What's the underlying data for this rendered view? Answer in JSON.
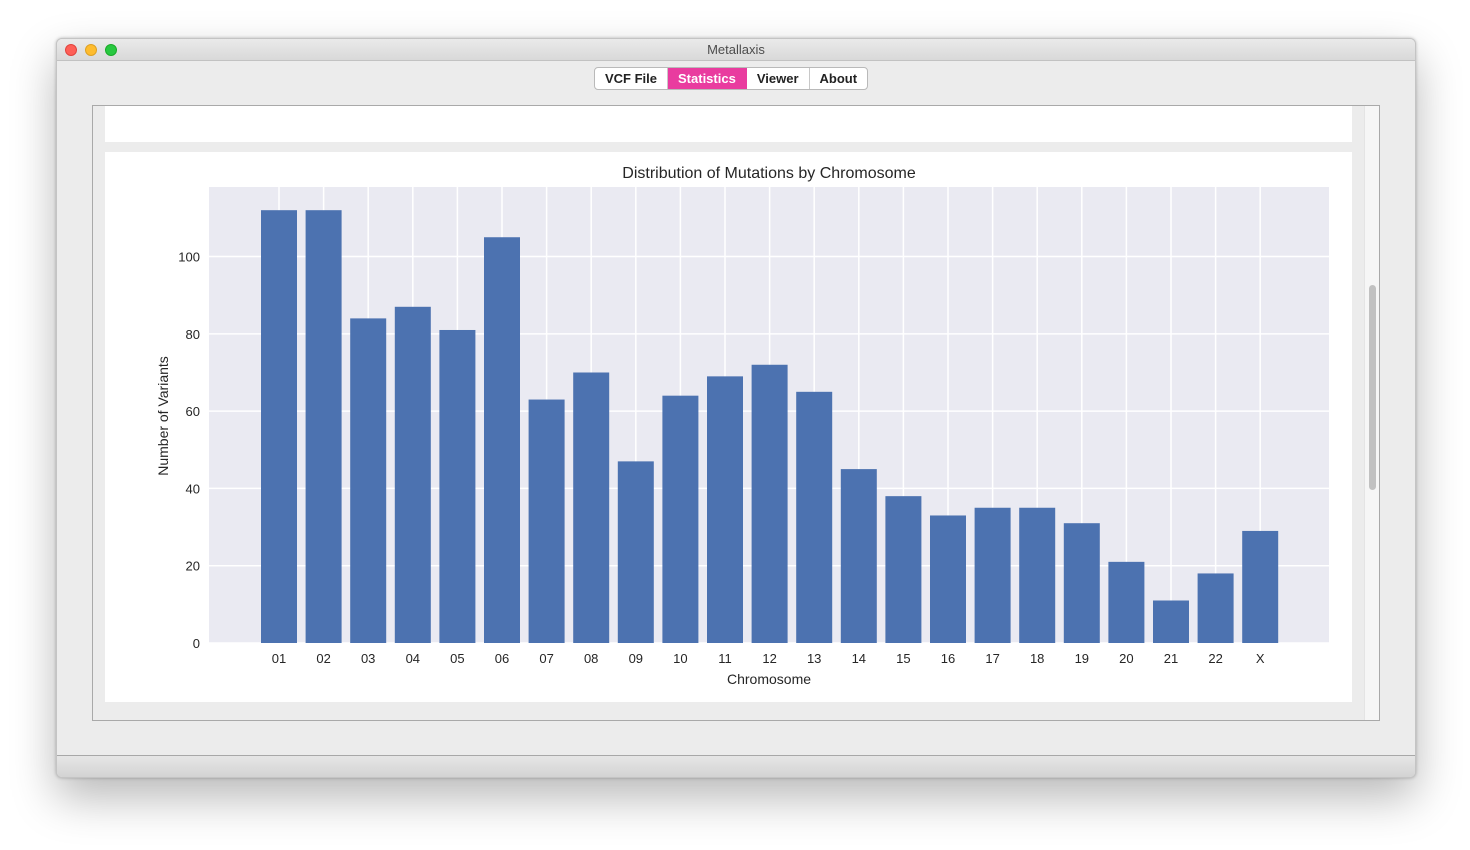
{
  "window": {
    "title": "Metallaxis"
  },
  "tabs": [
    {
      "label": "VCF File",
      "active": false
    },
    {
      "label": "Statistics",
      "active": true
    },
    {
      "label": "Viewer",
      "active": false
    },
    {
      "label": "About",
      "active": false
    }
  ],
  "colors": {
    "bar": "#4c72b0",
    "plot_bg": "#eaeaf2",
    "grid": "#ffffff",
    "active_tab": "#e93c9f"
  },
  "chart_data": {
    "type": "bar",
    "title": "Distribution of Mutations by Chromosome",
    "xlabel": "Chromosome",
    "ylabel": "Number of Variants",
    "categories": [
      "01",
      "02",
      "03",
      "04",
      "05",
      "06",
      "07",
      "08",
      "09",
      "10",
      "11",
      "12",
      "13",
      "14",
      "15",
      "16",
      "17",
      "18",
      "19",
      "20",
      "21",
      "22",
      "X"
    ],
    "values": [
      112,
      112,
      84,
      87,
      81,
      105,
      63,
      70,
      47,
      64,
      69,
      72,
      65,
      45,
      38,
      33,
      35,
      35,
      31,
      21,
      11,
      18,
      29
    ],
    "ylim": [
      0,
      118
    ],
    "yticks": [
      0,
      20,
      40,
      60,
      80,
      100
    ],
    "grid": true,
    "legend": false
  }
}
